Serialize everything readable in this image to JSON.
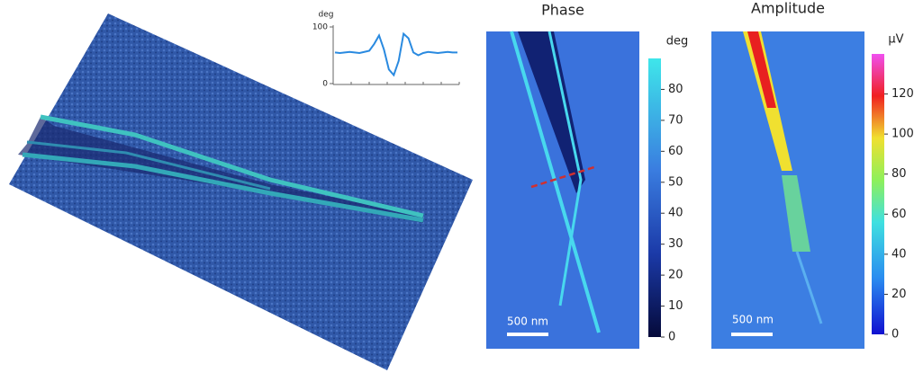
{
  "inset": {
    "y_label": "deg",
    "ylim": [
      0,
      100
    ],
    "yticks": [
      100,
      0
    ],
    "values": [
      55,
      54,
      55,
      56,
      55,
      54,
      56,
      58,
      70,
      85,
      60,
      25,
      15,
      40,
      88,
      80,
      55,
      50,
      54,
      56,
      55,
      54,
      55,
      56,
      55,
      55
    ]
  },
  "phase": {
    "title": "Phase",
    "unit": "deg",
    "lim": [
      0,
      90
    ],
    "ticks": [
      0,
      10,
      20,
      30,
      40,
      50,
      60,
      70,
      80
    ],
    "scale_bar": "500 nm"
  },
  "amplitude": {
    "title": "Amplitude",
    "unit": "µV",
    "lim": [
      0,
      140
    ],
    "ticks": [
      0,
      20,
      40,
      60,
      80,
      100,
      120
    ],
    "scale_bar": "500 nm"
  }
}
